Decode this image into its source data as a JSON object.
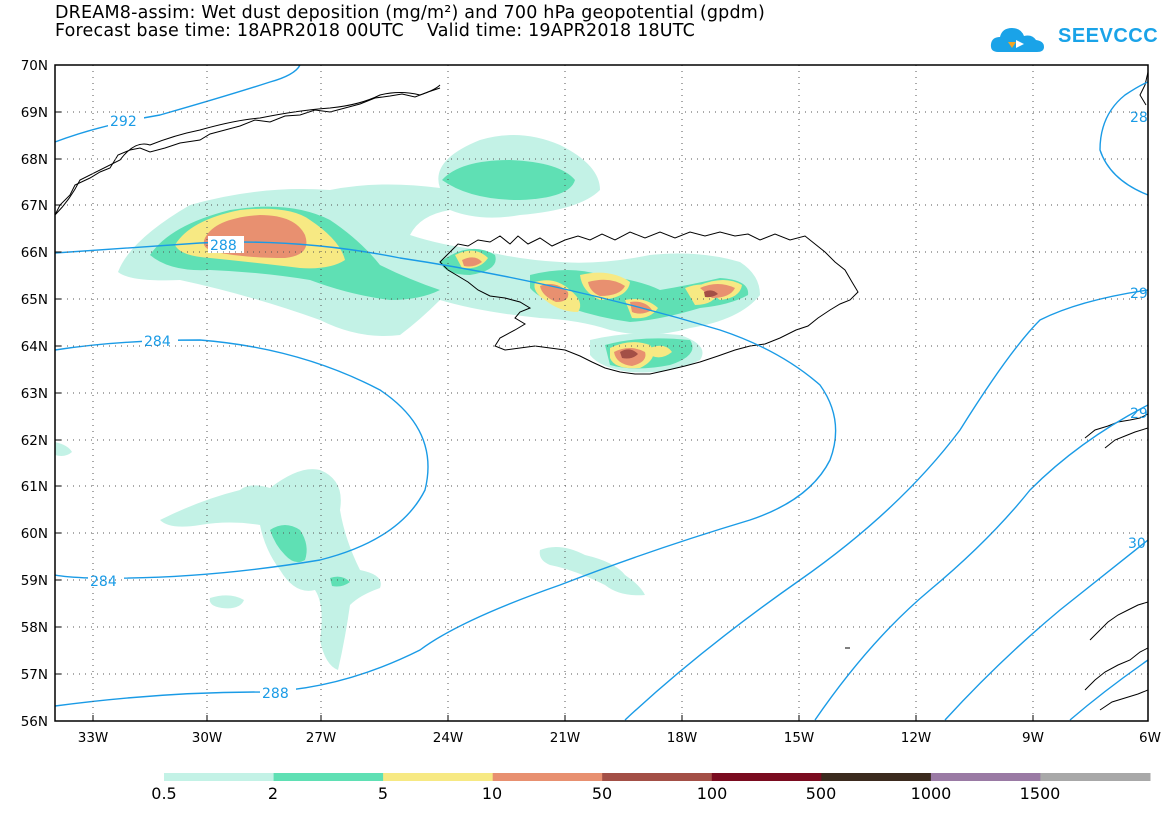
{
  "title": {
    "line1": "DREAM8-assim: Wet dust deposition (mg/m²) and 700 hPa geopotential (gpdm)",
    "line2": "Forecast base time: 18APR2018 00UTC    Valid time: 19APR2018 18UTC"
  },
  "logo": {
    "text": "SEEVCCC"
  },
  "axes": {
    "lat_labels": [
      "70N",
      "69N",
      "68N",
      "67N",
      "66N",
      "65N",
      "64N",
      "63N",
      "62N",
      "61N",
      "60N",
      "59N",
      "58N",
      "57N",
      "56N"
    ],
    "lon_labels": [
      "33W",
      "30W",
      "27W",
      "24W",
      "21W",
      "18W",
      "15W",
      "12W",
      "9W",
      "6W"
    ]
  },
  "contours": {
    "labels": [
      "292",
      "288",
      "284",
      "284",
      "288",
      "28",
      "29",
      "29",
      "30"
    ]
  },
  "legend": {
    "colors": [
      "#c3f2e6",
      "#5fe0b4",
      "#f7e983",
      "#e89070",
      "#a34f46",
      "#7a0b1f",
      "#3b2a1e",
      "#9a7aa4",
      "#a8a8a8"
    ],
    "labels": [
      "0.5",
      "2",
      "5",
      "10",
      "50",
      "100",
      "500",
      "1000",
      "1500"
    ]
  }
}
